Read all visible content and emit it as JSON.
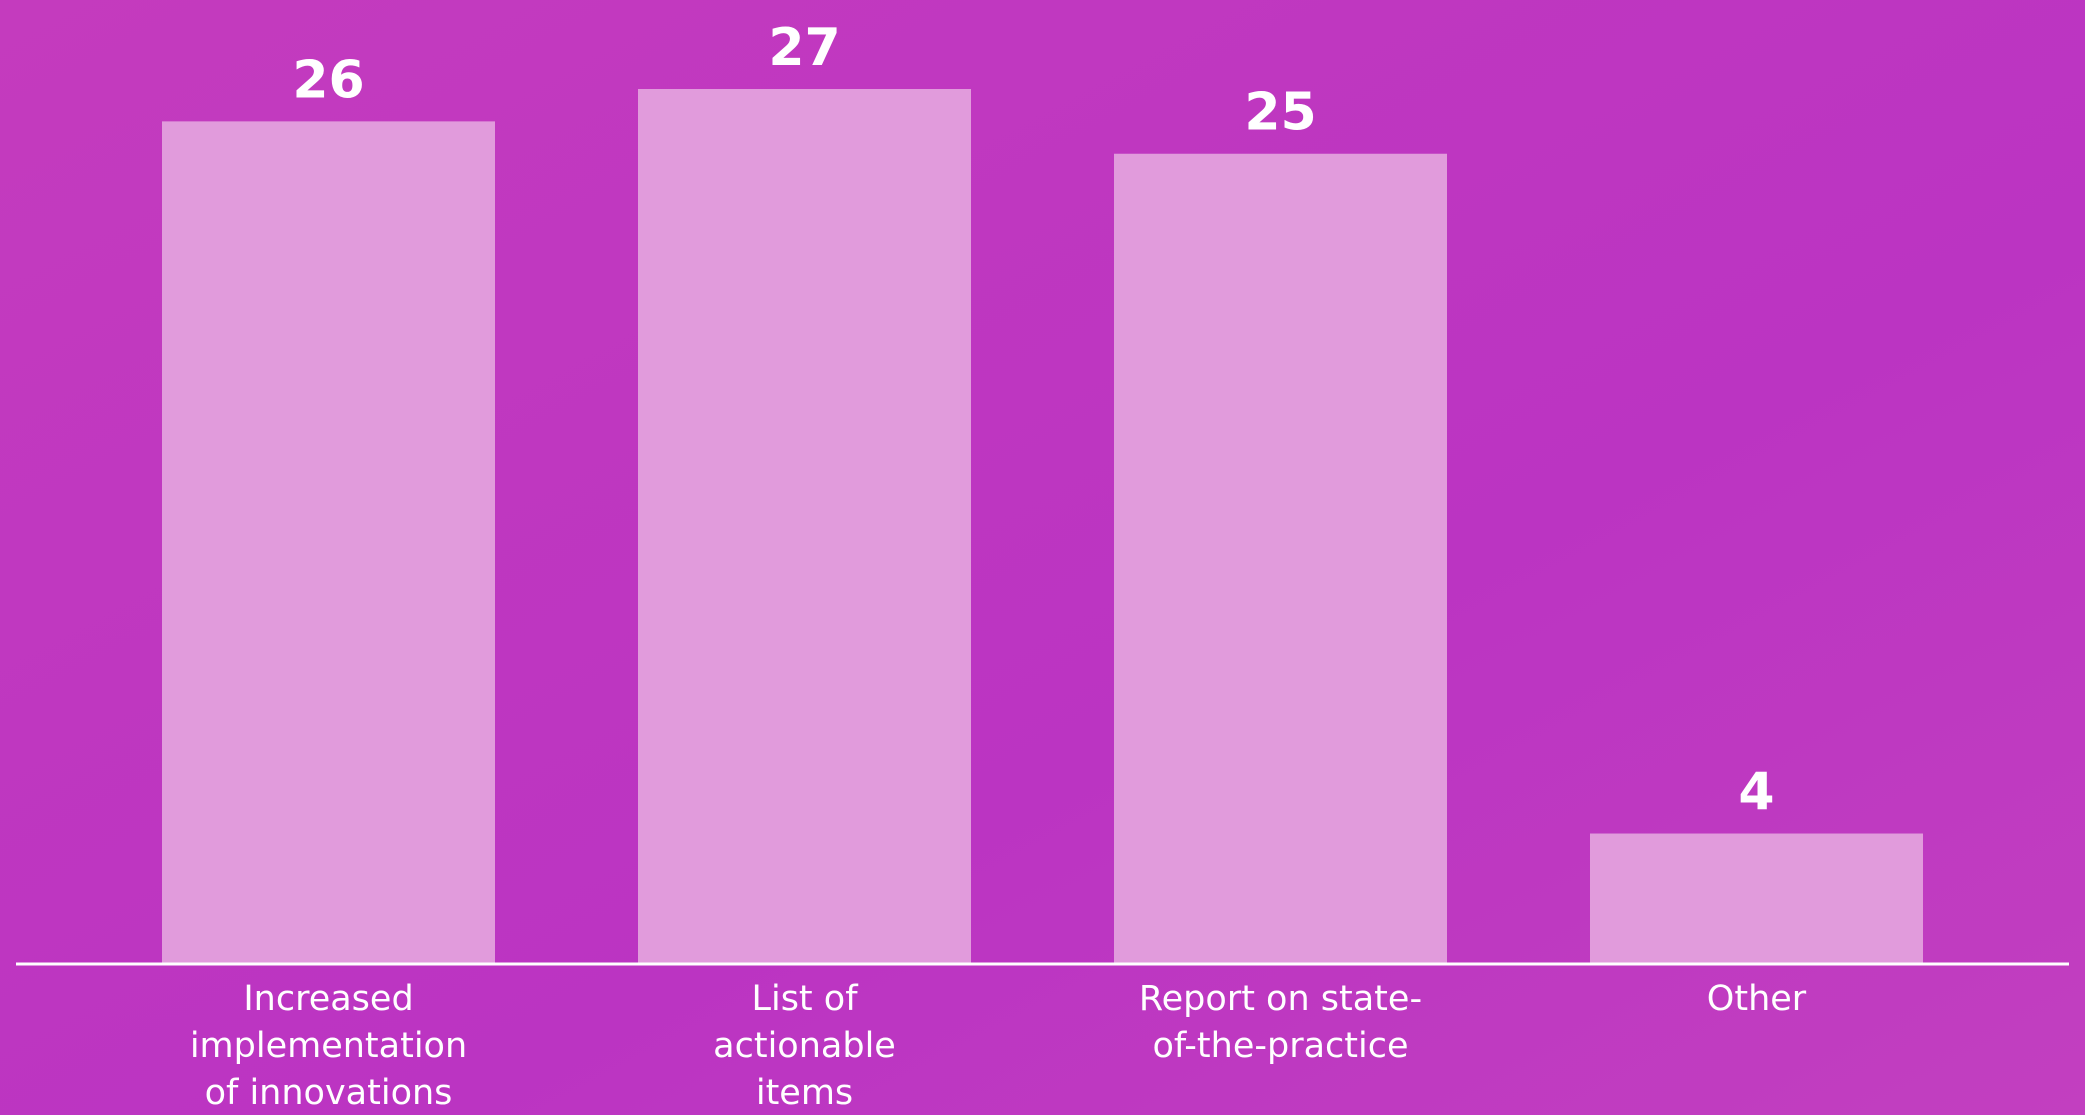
{
  "chart_data": {
    "type": "bar",
    "categories": [
      [
        "Increased",
        "implementation",
        "of innovations"
      ],
      [
        "List of",
        "actionable",
        "items"
      ],
      [
        "Report on state-",
        "of-the-practice"
      ],
      [
        "Other"
      ]
    ],
    "values": [
      26,
      27,
      25,
      4
    ],
    "color": "#e19bdc"
  }
}
